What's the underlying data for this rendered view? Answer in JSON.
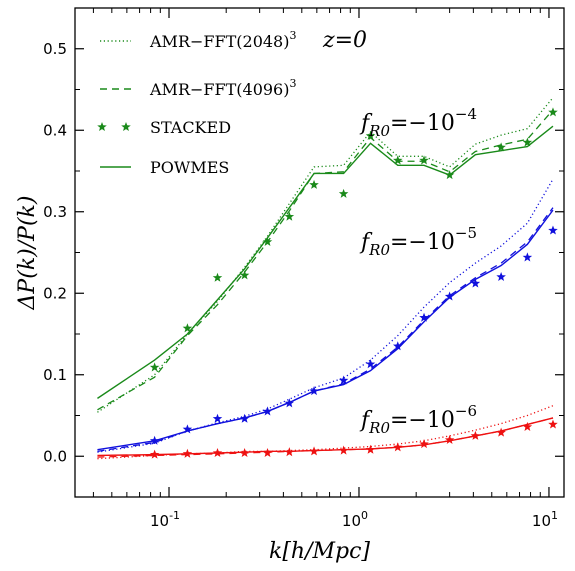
{
  "chart_data": {
    "type": "line",
    "xscale": "log",
    "xlim": [
      0.032,
      12
    ],
    "ylim": [
      -0.05,
      0.55
    ],
    "yticks": [
      0.0,
      0.1,
      0.2,
      0.3,
      0.4,
      0.5
    ],
    "ytick_labels": [
      "0.0",
      "0.1",
      "0.2",
      "0.3",
      "0.4",
      "0.5"
    ],
    "xticks": [
      0.1,
      1.0,
      10.0
    ],
    "xtick_labels": [
      "10^-1",
      "10^0",
      "10^1"
    ],
    "xlabel": "k[h/Mpc]",
    "ylabel": "ΔP(k)/P(k)",
    "legend_position": "top-left",
    "colors": {
      "f4": "#1a8a1a",
      "f5": "#1010dd",
      "f6": "#ee1111"
    },
    "legend": [
      {
        "label": "AMR−FFT(2048)³",
        "style": "dotted"
      },
      {
        "label": "AMR−FFT(4096)³",
        "style": "dashed"
      },
      {
        "label": "STACKED",
        "style": "stars"
      },
      {
        "label": "POWMES",
        "style": "solid"
      }
    ],
    "redshift_label": "z=0",
    "annotations": [
      {
        "text": "f_R0=−10^−4",
        "base": "f",
        "sub": "R0",
        "eq": "=−10",
        "sup": "−4",
        "group": "f4"
      },
      {
        "text": "f_R0=−10^−5",
        "base": "f",
        "sub": "R0",
        "eq": "=−10",
        "sup": "−5",
        "group": "f5"
      },
      {
        "text": "f_R0=−10^−6",
        "base": "f",
        "sub": "R0",
        "eq": "=−10",
        "sup": "−6",
        "group": "f6"
      }
    ],
    "series": [
      {
        "group": "f4",
        "style": "solid",
        "x": [
          0.042,
          0.084,
          0.125,
          0.18,
          0.25,
          0.33,
          0.43,
          0.58,
          0.83,
          1.15,
          1.6,
          2.2,
          3.0,
          4.1,
          5.6,
          7.7,
          10.5
        ],
        "y": [
          0.071,
          0.118,
          0.15,
          0.192,
          0.23,
          0.268,
          0.305,
          0.347,
          0.347,
          0.384,
          0.357,
          0.357,
          0.345,
          0.37,
          0.375,
          0.38,
          0.405
        ]
      },
      {
        "group": "f4",
        "style": "dotted",
        "x": [
          0.042,
          0.084,
          0.125,
          0.18,
          0.25,
          0.33,
          0.43,
          0.58,
          0.83,
          1.15,
          1.6,
          2.2,
          3.0,
          4.1,
          5.6,
          7.7,
          10.5
        ],
        "y": [
          0.054,
          0.1,
          0.15,
          0.19,
          0.232,
          0.27,
          0.31,
          0.355,
          0.357,
          0.398,
          0.368,
          0.368,
          0.355,
          0.383,
          0.394,
          0.402,
          0.44
        ]
      },
      {
        "group": "f4",
        "style": "dashed",
        "x": [
          0.042,
          0.084,
          0.125,
          0.18,
          0.25,
          0.33,
          0.43,
          0.58,
          0.83,
          1.15,
          1.6,
          2.2,
          3.0,
          4.1,
          5.6,
          7.7,
          10.5
        ],
        "y": [
          0.057,
          0.097,
          0.148,
          0.186,
          0.226,
          0.263,
          0.301,
          0.347,
          0.349,
          0.391,
          0.362,
          0.362,
          0.349,
          0.374,
          0.382,
          0.389,
          0.425
        ]
      },
      {
        "group": "f4",
        "style": "stars",
        "x": [
          0.084,
          0.125,
          0.18,
          0.25,
          0.33,
          0.43,
          0.58,
          0.83,
          1.15,
          1.6,
          2.2,
          3.0,
          5.6,
          7.7,
          10.5
        ],
        "y": [
          0.109,
          0.157,
          0.219,
          0.222,
          0.263,
          0.294,
          0.333,
          0.322,
          0.393,
          0.363,
          0.363,
          0.345,
          0.379,
          0.385,
          0.422
        ]
      },
      {
        "group": "f5",
        "style": "solid",
        "x": [
          0.042,
          0.084,
          0.125,
          0.18,
          0.25,
          0.33,
          0.43,
          0.58,
          0.83,
          1.15,
          1.6,
          2.2,
          3.0,
          4.1,
          5.6,
          7.7,
          10.5
        ],
        "y": [
          0.008,
          0.019,
          0.031,
          0.04,
          0.047,
          0.055,
          0.066,
          0.08,
          0.088,
          0.105,
          0.132,
          0.165,
          0.195,
          0.217,
          0.234,
          0.26,
          0.302
        ]
      },
      {
        "group": "f5",
        "style": "dotted",
        "x": [
          0.042,
          0.084,
          0.125,
          0.18,
          0.25,
          0.33,
          0.43,
          0.58,
          0.83,
          1.15,
          1.6,
          2.2,
          3.0,
          4.1,
          5.6,
          7.7,
          10.5
        ],
        "y": [
          0.005,
          0.016,
          0.031,
          0.041,
          0.049,
          0.058,
          0.07,
          0.084,
          0.096,
          0.118,
          0.148,
          0.183,
          0.213,
          0.237,
          0.258,
          0.286,
          0.34
        ]
      },
      {
        "group": "f5",
        "style": "dashed",
        "x": [
          0.042,
          0.084,
          0.125,
          0.18,
          0.25,
          0.33,
          0.43,
          0.58,
          0.83,
          1.15,
          1.6,
          2.2,
          3.0,
          4.1,
          5.6,
          7.7,
          10.5
        ],
        "y": [
          0.006,
          0.017,
          0.031,
          0.04,
          0.047,
          0.055,
          0.066,
          0.08,
          0.089,
          0.107,
          0.134,
          0.167,
          0.197,
          0.219,
          0.237,
          0.263,
          0.305
        ]
      },
      {
        "group": "f5",
        "style": "stars",
        "x": [
          0.084,
          0.125,
          0.18,
          0.25,
          0.33,
          0.43,
          0.58,
          0.83,
          1.15,
          1.6,
          2.2,
          3.0,
          4.1,
          5.6,
          7.7,
          10.5
        ],
        "y": [
          0.019,
          0.033,
          0.046,
          0.046,
          0.055,
          0.065,
          0.08,
          0.093,
          0.113,
          0.135,
          0.17,
          0.196,
          0.212,
          0.22,
          0.244,
          0.277
        ]
      },
      {
        "group": "f6",
        "style": "solid",
        "x": [
          0.042,
          0.084,
          0.125,
          0.18,
          0.25,
          0.33,
          0.43,
          0.58,
          0.83,
          1.15,
          1.6,
          2.2,
          3.0,
          4.1,
          5.6,
          7.7,
          10.5
        ],
        "y": [
          0.001,
          0.002,
          0.003,
          0.004,
          0.005,
          0.006,
          0.006,
          0.007,
          0.008,
          0.009,
          0.011,
          0.014,
          0.019,
          0.025,
          0.031,
          0.039,
          0.047
        ]
      },
      {
        "group": "f6",
        "style": "dotted",
        "x": [
          0.042,
          0.084,
          0.125,
          0.18,
          0.25,
          0.33,
          0.43,
          0.58,
          0.83,
          1.15,
          1.6,
          2.2,
          3.0,
          4.1,
          5.6,
          7.7,
          10.5
        ],
        "y": [
          -0.003,
          0.001,
          0.003,
          0.004,
          0.006,
          0.006,
          0.007,
          0.008,
          0.01,
          0.012,
          0.015,
          0.019,
          0.025,
          0.032,
          0.04,
          0.05,
          0.062
        ]
      },
      {
        "group": "f6",
        "style": "dashed",
        "x": [
          0.042,
          0.084,
          0.125,
          0.18,
          0.25,
          0.33,
          0.43,
          0.58,
          0.83,
          1.15,
          1.6,
          2.2,
          3.0,
          4.1,
          5.6,
          7.7,
          10.5
        ],
        "y": [
          -0.001,
          0.001,
          0.002,
          0.003,
          0.004,
          0.005,
          0.006,
          0.007,
          0.008,
          0.009,
          0.011,
          0.014,
          0.019,
          0.025,
          0.031,
          0.039,
          0.047
        ]
      },
      {
        "group": "f6",
        "style": "stars",
        "x": [
          0.084,
          0.125,
          0.18,
          0.25,
          0.33,
          0.43,
          0.58,
          0.83,
          1.15,
          1.6,
          2.2,
          3.0,
          4.1,
          5.6,
          7.7,
          10.5
        ],
        "y": [
          0.002,
          0.003,
          0.004,
          0.004,
          0.004,
          0.005,
          0.006,
          0.007,
          0.008,
          0.011,
          0.015,
          0.02,
          0.025,
          0.029,
          0.036,
          0.039
        ]
      }
    ]
  }
}
